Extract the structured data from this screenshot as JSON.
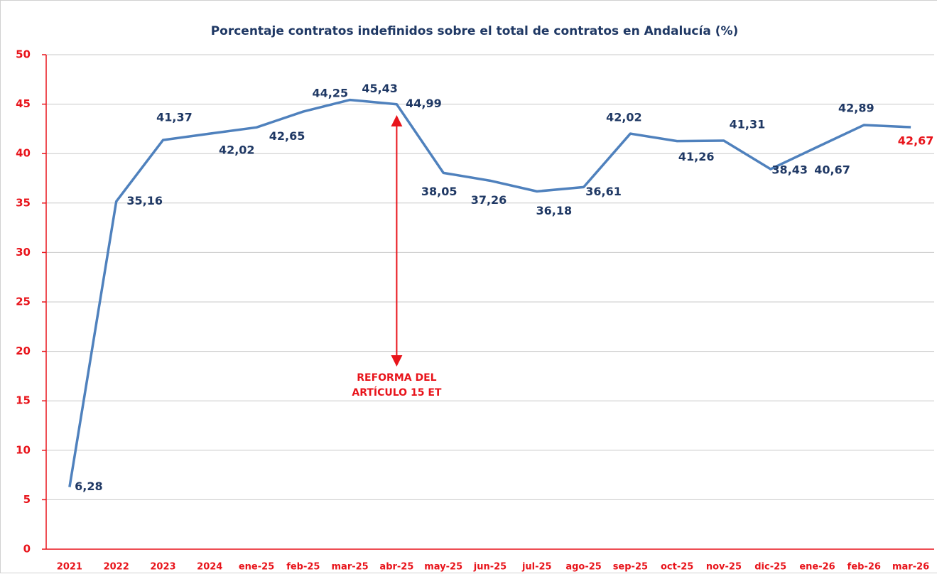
{
  "chart_data": {
    "type": "line",
    "title": "Porcentaje contratos indefinidos sobre el total de contratos en Andalucía (%)",
    "categories": [
      "2021",
      "2022",
      "2023",
      "2024",
      "ene-25",
      "feb-25",
      "mar-25",
      "abr-25",
      "may-25",
      "jun-25",
      "jul-25",
      "ago-25",
      "sep-25",
      "oct-25",
      "nov-25",
      "dic-25",
      "ene-26",
      "feb-26",
      "mar-26"
    ],
    "series": [
      {
        "name": "Porcentaje contratos indefinidos",
        "color": "#4f81bd",
        "values": [
          6.28,
          35.16,
          41.37,
          42.02,
          42.65,
          44.25,
          45.43,
          44.99,
          38.05,
          37.26,
          36.18,
          36.61,
          42.02,
          41.26,
          41.31,
          38.43,
          40.67,
          42.89,
          42.67
        ],
        "value_labels": [
          "6,28",
          "35,16",
          "41,37",
          "42,02",
          "42,65",
          "44,25",
          "45,43",
          "44,99",
          "38,05",
          "37,26",
          "36,18",
          "36,61",
          "42,02",
          "41,26",
          "41,31",
          "38,43",
          "40,67",
          "42,89",
          "42,67"
        ],
        "value_label_colors": [
          "#1f3864",
          "#1f3864",
          "#1f3864",
          "#1f3864",
          "#1f3864",
          "#1f3864",
          "#1f3864",
          "#1f3864",
          "#1f3864",
          "#1f3864",
          "#1f3864",
          "#1f3864",
          "#1f3864",
          "#1f3864",
          "#1f3864",
          "#1f3864",
          "#1f3864",
          "#1f3864",
          "#e8141b"
        ]
      }
    ],
    "annotation": {
      "lines": [
        "REFORMA DEL",
        "ARTÍCULO 15 ET"
      ],
      "color": "#e8141b"
    },
    "axis_color": "#e8141b",
    "ylim": [
      0,
      50
    ],
    "yticks": [
      0,
      5,
      10,
      15,
      20,
      25,
      30,
      35,
      40,
      45,
      50
    ],
    "grid": true
  }
}
